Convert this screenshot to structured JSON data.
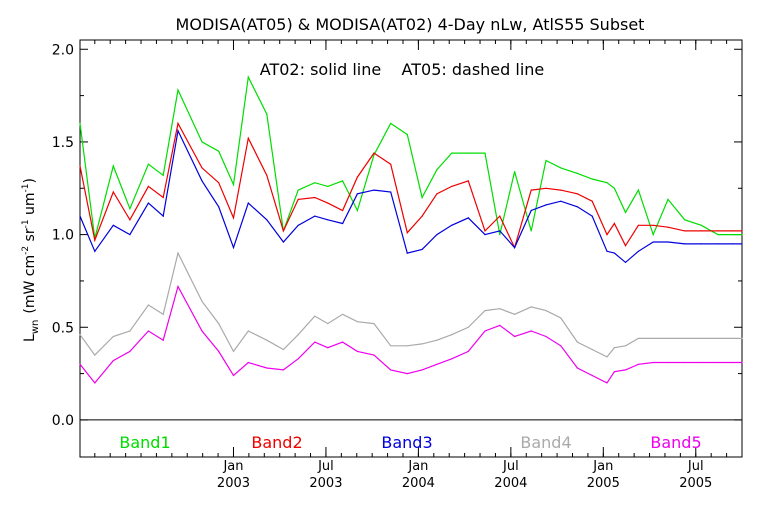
{
  "chart_data": {
    "type": "line",
    "title": "MODISA(AT05) & MODISA(AT02) 4-Day nLw, AtlS55 Subset",
    "annotation": "AT02: solid line    AT05: dashed line",
    "ylabel": "L",
    "ylabel_sub": "wn",
    "ylabel_units": "(mW cm",
    "ylabel_units_rest": " sr",
    "ylabel_units_end": " um",
    "ylabel_close": ")",
    "ylabel_sup": "-2",
    "ylabel_sup2": "-1",
    "ylabel_sup3": "-1",
    "ylim": [
      -0.2,
      2.05
    ],
    "y_ticks": [
      "0.0",
      "0.5",
      "1.0",
      "1.5",
      "2.0"
    ],
    "xlim": [
      2002.17,
      2005.75
    ],
    "x_ticks": [
      {
        "month": "Jan",
        "year": "2003",
        "t": 2003.0
      },
      {
        "month": "Jul",
        "year": "2003",
        "t": 2003.5
      },
      {
        "month": "Jan",
        "year": "2004",
        "t": 2004.0
      },
      {
        "month": "Jul",
        "year": "2004",
        "t": 2004.5
      },
      {
        "month": "Jan",
        "year": "2005",
        "t": 2005.0
      },
      {
        "month": "Jul",
        "year": "2005",
        "t": 2005.5
      }
    ],
    "x": [
      2002.17,
      2002.25,
      2002.35,
      2002.44,
      2002.54,
      2002.62,
      2002.7,
      2002.83,
      2002.92,
      2003.0,
      2003.08,
      2003.18,
      2003.27,
      2003.35,
      2003.44,
      2003.51,
      2003.59,
      2003.67,
      2003.76,
      2003.85,
      2003.94,
      2004.02,
      2004.1,
      2004.18,
      2004.27,
      2004.36,
      2004.44,
      2004.52,
      2004.61,
      2004.69,
      2004.77,
      2004.86,
      2004.94,
      2005.02,
      2005.06,
      2005.12,
      2005.19,
      2005.27,
      2005.35,
      2005.44,
      2005.53,
      2005.62,
      2005.7,
      2005.75
    ],
    "grid": false,
    "legend_position": "bottom",
    "series": [
      {
        "name": "Band1",
        "color": "#00dd00",
        "values": [
          1.6,
          0.98,
          1.37,
          1.14,
          1.38,
          1.32,
          1.78,
          1.5,
          1.45,
          1.27,
          1.85,
          1.65,
          1.02,
          1.24,
          1.28,
          1.26,
          1.29,
          1.13,
          1.43,
          1.6,
          1.54,
          1.2,
          1.35,
          1.44,
          1.44,
          1.44,
          1.0,
          1.34,
          1.02,
          1.4,
          1.36,
          1.33,
          1.3,
          1.28,
          1.25,
          1.12,
          1.24,
          1.0,
          1.19,
          1.08,
          1.05,
          1.0,
          1.0,
          1.0
        ]
      },
      {
        "name": "Band2",
        "color": "#ee0000",
        "values": [
          1.37,
          0.97,
          1.23,
          1.08,
          1.26,
          1.2,
          1.6,
          1.36,
          1.28,
          1.09,
          1.52,
          1.32,
          1.02,
          1.19,
          1.2,
          1.17,
          1.13,
          1.31,
          1.44,
          1.38,
          1.01,
          1.1,
          1.22,
          1.26,
          1.29,
          1.02,
          1.1,
          0.93,
          1.24,
          1.25,
          1.24,
          1.22,
          1.18,
          1.0,
          1.06,
          0.94,
          1.05,
          1.05,
          1.04,
          1.02,
          1.02,
          1.02,
          1.02,
          1.02
        ]
      },
      {
        "name": "Band3",
        "color": "#0000dd",
        "values": [
          1.1,
          0.91,
          1.05,
          1.0,
          1.17,
          1.1,
          1.56,
          1.29,
          1.15,
          0.93,
          1.17,
          1.08,
          0.96,
          1.05,
          1.1,
          1.08,
          1.06,
          1.22,
          1.24,
          1.23,
          0.9,
          0.92,
          1.0,
          1.05,
          1.09,
          1.0,
          1.02,
          0.93,
          1.13,
          1.16,
          1.18,
          1.15,
          1.1,
          0.91,
          0.9,
          0.85,
          0.91,
          0.96,
          0.96,
          0.95,
          0.95,
          0.95,
          0.95,
          0.95
        ]
      },
      {
        "name": "Band4",
        "color": "#aaaaaa",
        "values": [
          0.46,
          0.35,
          0.45,
          0.48,
          0.62,
          0.57,
          0.9,
          0.64,
          0.52,
          0.37,
          0.48,
          0.43,
          0.38,
          0.46,
          0.56,
          0.52,
          0.57,
          0.53,
          0.52,
          0.4,
          0.4,
          0.41,
          0.43,
          0.46,
          0.5,
          0.59,
          0.6,
          0.57,
          0.61,
          0.59,
          0.55,
          0.42,
          0.38,
          0.34,
          0.39,
          0.4,
          0.44,
          0.44,
          0.44,
          0.44,
          0.44,
          0.44,
          0.44,
          0.44
        ]
      },
      {
        "name": "Band5",
        "color": "#ee00ee",
        "values": [
          0.3,
          0.2,
          0.32,
          0.37,
          0.48,
          0.43,
          0.72,
          0.48,
          0.37,
          0.24,
          0.31,
          0.28,
          0.27,
          0.33,
          0.42,
          0.39,
          0.42,
          0.37,
          0.35,
          0.27,
          0.25,
          0.27,
          0.3,
          0.33,
          0.37,
          0.48,
          0.51,
          0.45,
          0.48,
          0.45,
          0.4,
          0.28,
          0.24,
          0.2,
          0.26,
          0.27,
          0.3,
          0.31,
          0.31,
          0.31,
          0.31,
          0.31,
          0.31,
          0.31
        ]
      }
    ]
  }
}
